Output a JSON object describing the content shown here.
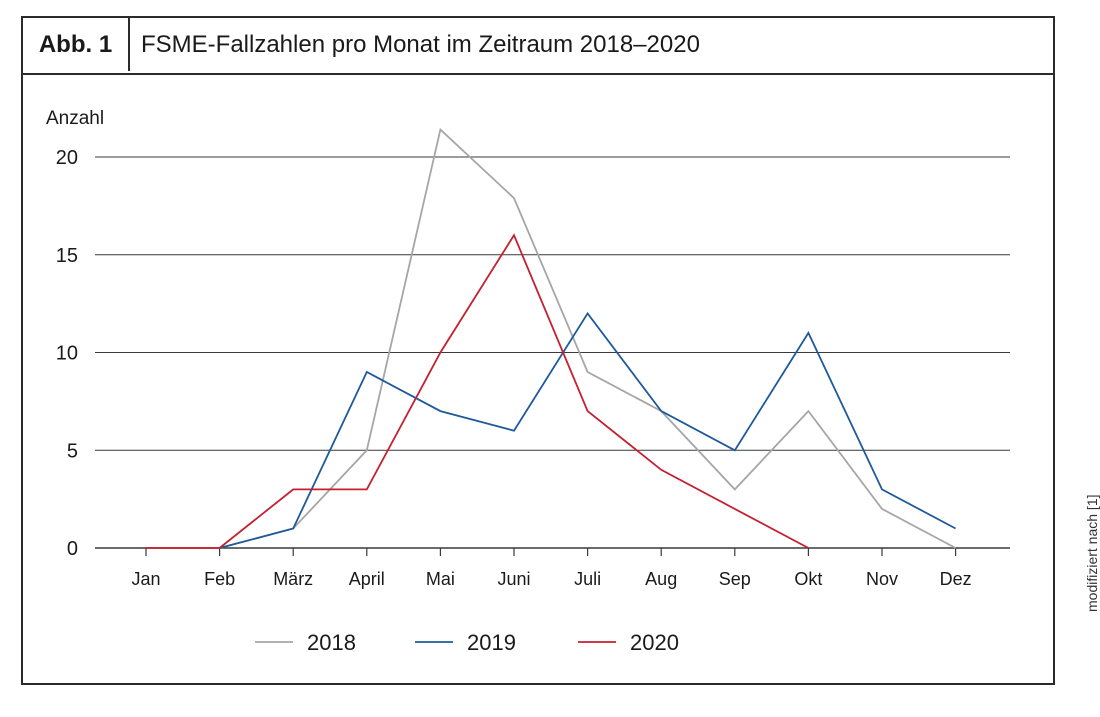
{
  "figure": {
    "label": "Abb. 1",
    "title": "FSME-Fallzahlen pro Monat im Zeitraum 2018–2020",
    "source_note": "modifiziert nach [1]"
  },
  "chart_data": {
    "type": "line",
    "ylabel": "Anzahl",
    "xlabel": "",
    "categories": [
      "Jan",
      "Feb",
      "März",
      "April",
      "Mai",
      "Juni",
      "Juli",
      "Aug",
      "Sep",
      "Okt",
      "Nov",
      "Dez"
    ],
    "ylim": [
      0,
      20
    ],
    "yticks": [
      0,
      5,
      10,
      15,
      20
    ],
    "grid": "horizontal",
    "legend_position": "bottom",
    "series": [
      {
        "name": "2018",
        "color": "#a6a6a6",
        "values": [
          null,
          0,
          1,
          5,
          21.4,
          17.9,
          9,
          7,
          3,
          7,
          2,
          0
        ]
      },
      {
        "name": "2019",
        "color": "#1e5a9b",
        "values": [
          null,
          0,
          1,
          9,
          7,
          6,
          12,
          7,
          5,
          11,
          3,
          1
        ]
      },
      {
        "name": "2020",
        "color": "#c4202f",
        "values": [
          0,
          0,
          3,
          3,
          10,
          16,
          7,
          4,
          2,
          0,
          null,
          null
        ]
      }
    ]
  }
}
